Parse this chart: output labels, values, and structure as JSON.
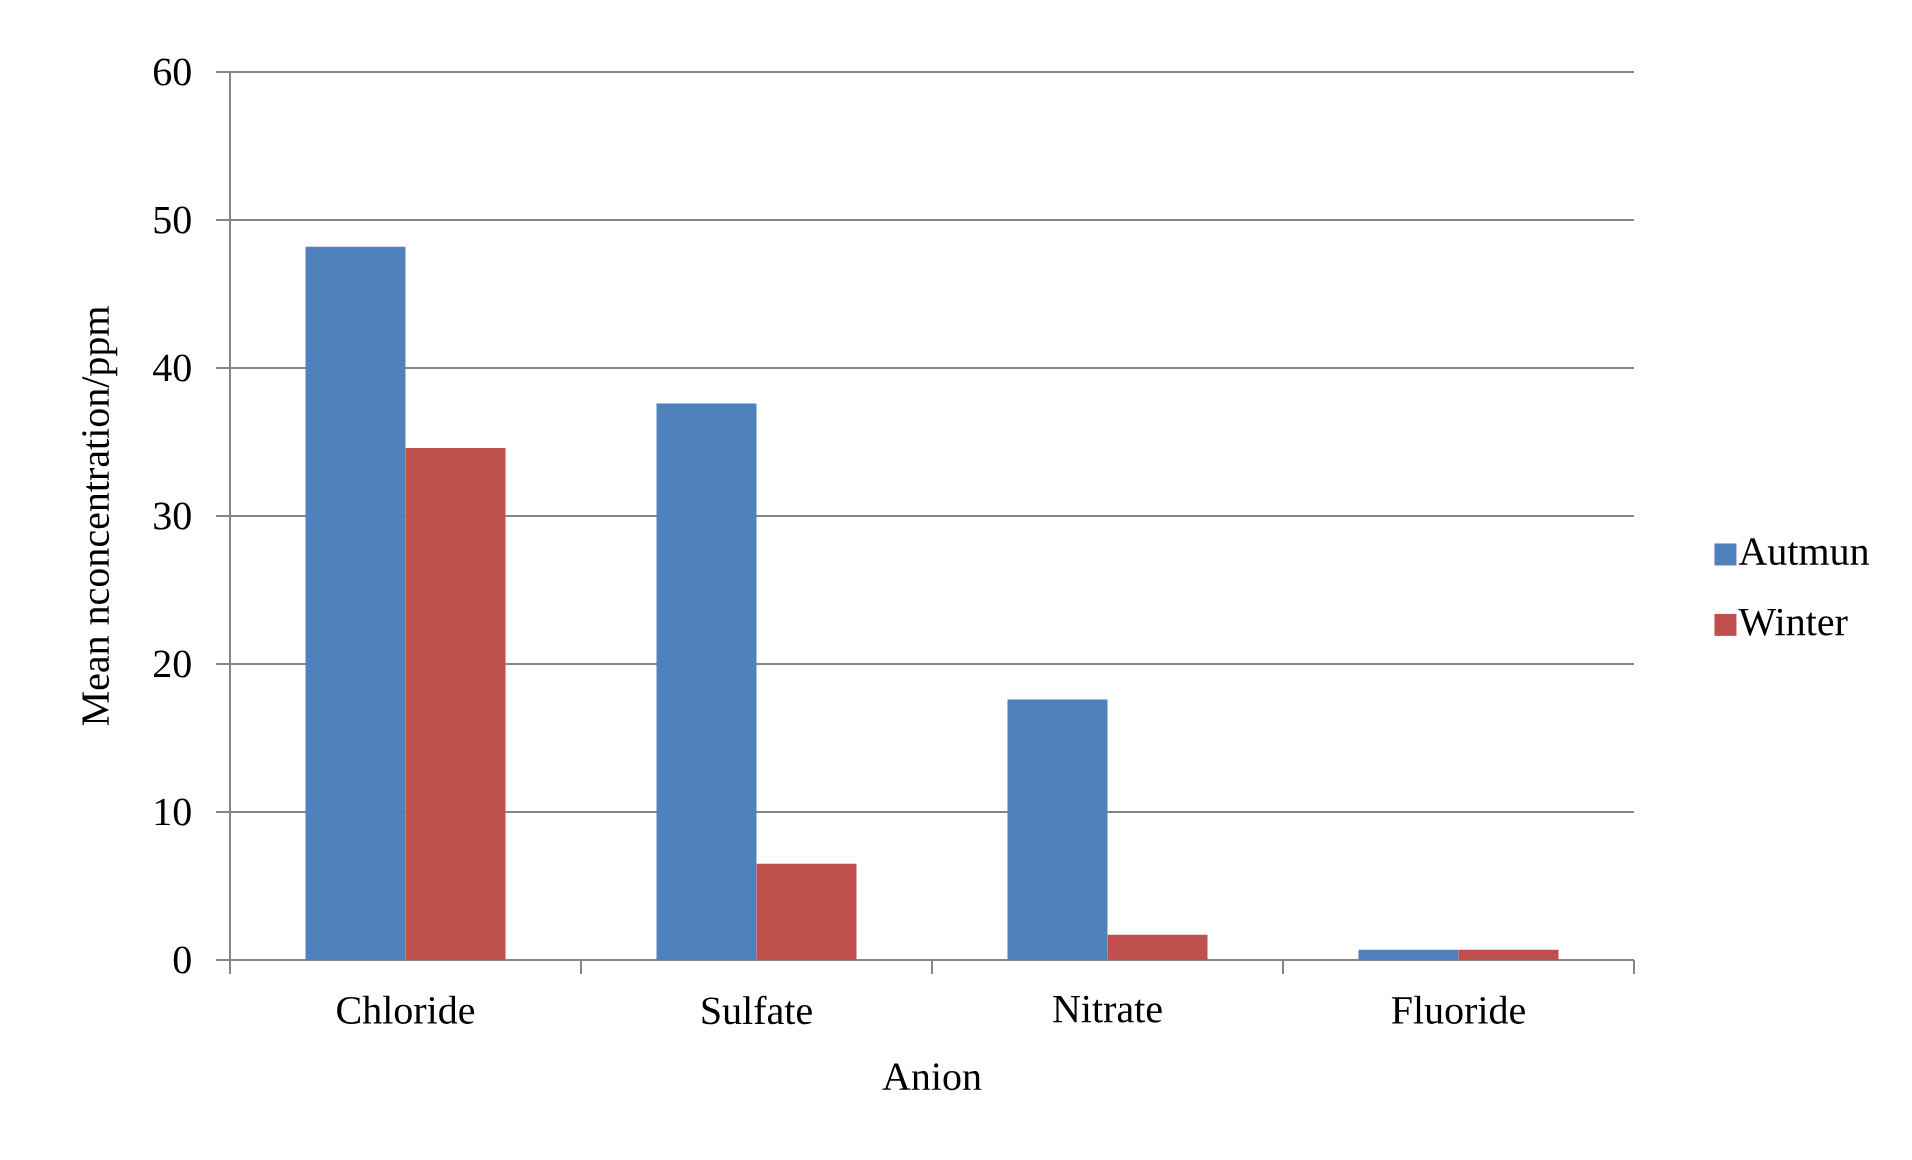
{
  "chart_data": {
    "type": "bar",
    "xlabel": "Anion",
    "ylabel": "Mean nconcentration/ppm",
    "categories": [
      "Chloride",
      "Sulfate",
      "Nitrate",
      "Fluoride"
    ],
    "series": [
      {
        "name": "Autmun",
        "color": "#4f81bd",
        "values": [
          48.2,
          37.6,
          17.6,
          0.7
        ]
      },
      {
        "name": "Winter",
        "color": "#c0504d",
        "values": [
          34.6,
          6.5,
          1.7,
          0.7
        ]
      }
    ],
    "ylim": [
      0,
      60
    ],
    "yticks": [
      0,
      10,
      20,
      30,
      40,
      50,
      60
    ],
    "grid": "y",
    "legend": "right"
  }
}
